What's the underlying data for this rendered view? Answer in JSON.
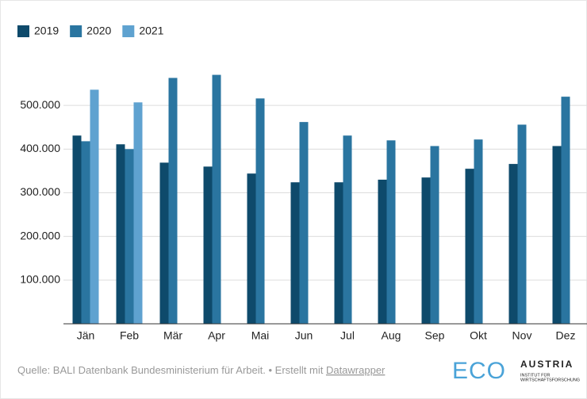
{
  "chart_data": {
    "type": "bar",
    "categories": [
      "Jän",
      "Feb",
      "Mär",
      "Apr",
      "Mai",
      "Jun",
      "Jul",
      "Aug",
      "Sep",
      "Okt",
      "Nov",
      "Dez"
    ],
    "series": [
      {
        "name": "2019",
        "color": "#0e4a6b",
        "values": [
          431000,
          411000,
          369000,
          360000,
          344000,
          324000,
          324000,
          330000,
          335000,
          355000,
          366000,
          407000
        ]
      },
      {
        "name": "2020",
        "color": "#2a75a0",
        "values": [
          418000,
          400000,
          563000,
          570000,
          516000,
          462000,
          431000,
          420000,
          407000,
          422000,
          456000,
          520000
        ]
      },
      {
        "name": "2021",
        "color": "#5fa2d0",
        "values": [
          536000,
          507000,
          null,
          null,
          null,
          null,
          null,
          null,
          null,
          null,
          null,
          null
        ]
      }
    ],
    "ylim": [
      0,
      600000
    ],
    "yticks": [
      {
        "value": 100000,
        "label": "100.000"
      },
      {
        "value": 200000,
        "label": "200.000"
      },
      {
        "value": 300000,
        "label": "300.000"
      },
      {
        "value": 400000,
        "label": "400.000"
      },
      {
        "value": 500000,
        "label": "500.000"
      }
    ],
    "grid": true,
    "legend": "top-left"
  },
  "footer": {
    "source": "Quelle: BALI Datenbank Bundesministerium für Arbeit. • Erstellt mit",
    "link": "Datawrapper"
  },
  "logo": {
    "mark": "ECO",
    "name": "AUSTRIA",
    "line1": "INSTITUT FÜR",
    "line2": "WIRTSCHAFTSFORSCHUNG"
  }
}
